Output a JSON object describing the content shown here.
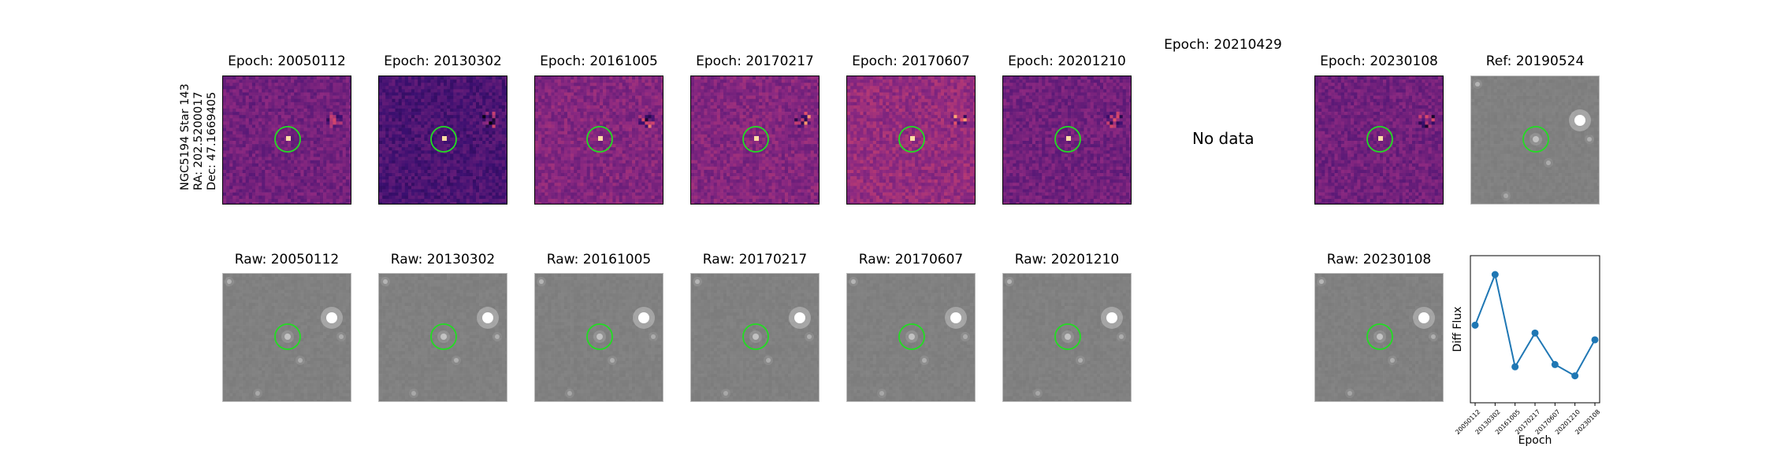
{
  "star_label": {
    "name": "NGC5194 Star 143",
    "ra": "RA: 202.5200017",
    "dec": "Dec: 47.1669405"
  },
  "diff_panels": [
    {
      "title": "Epoch: 20050112",
      "has_data": true
    },
    {
      "title": "Epoch: 20130302",
      "has_data": true
    },
    {
      "title": "Epoch: 20161005",
      "has_data": true
    },
    {
      "title": "Epoch: 20170217",
      "has_data": true
    },
    {
      "title": "Epoch: 20170607",
      "has_data": true
    },
    {
      "title": "Epoch: 20201210",
      "has_data": true
    },
    {
      "title": "Epoch: 20210429",
      "has_data": false,
      "message": "No data"
    },
    {
      "title": "Epoch: 20230108",
      "has_data": true
    }
  ],
  "ref_panel": {
    "title": "Ref: 20190524"
  },
  "raw_panels": [
    {
      "title": "Raw: 20050112"
    },
    {
      "title": "Raw: 20130302"
    },
    {
      "title": "Raw: 20161005"
    },
    {
      "title": "Raw: 20170217"
    },
    {
      "title": "Raw: 20170607"
    },
    {
      "title": "Raw: 20201210"
    },
    {
      "title": "Raw: 20230108"
    }
  ],
  "colors": {
    "marker_circle": "#22dd22",
    "line": "#1f77b4",
    "magma_dark": "#3b0f70",
    "magma_mid": "#b73779",
    "magma_light": "#fc8961",
    "raw_gray": "#888888"
  },
  "chart_data": {
    "type": "line",
    "x": [
      "20050112",
      "20130302",
      "20161005",
      "20170217",
      "20170607",
      "20201210",
      "20230108"
    ],
    "series": [
      {
        "values": [
          0.55,
          1.0,
          0.18,
          0.48,
          0.2,
          0.1,
          0.42
        ]
      }
    ],
    "xlabel": "Epoch",
    "ylabel": "Diff Flux",
    "grid": false
  }
}
